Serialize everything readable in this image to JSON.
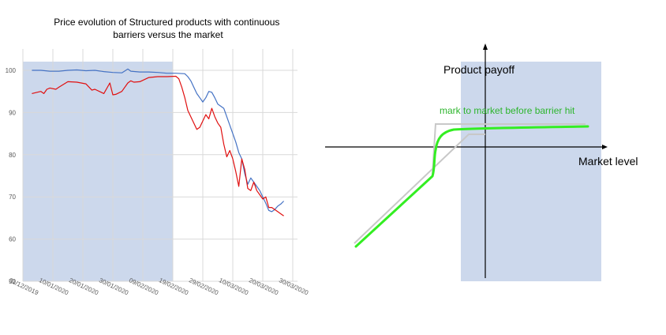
{
  "chart_data": [
    {
      "type": "line",
      "title": "Price evolution of Structured products with continuous barriers versus the market",
      "title_lines": [
        "Price evolution of Structured products with continuous",
        "barriers versus the market"
      ],
      "ylim": [
        50,
        105
      ],
      "y_ticks": [
        50,
        60,
        70,
        80,
        90,
        100
      ],
      "x_tick_labels": [
        "31/12/2019",
        "10/01/2020",
        "20/01/2020",
        "30/01/2020",
        "09/02/2020",
        "19/02/2020",
        "29/02/2020",
        "10/03/2020",
        "20/03/2020",
        "30/03/2020"
      ],
      "xlim_days_from_first_tick": [
        0,
        90
      ],
      "grid": true,
      "shaded_region": {
        "from": "31/12/2019",
        "to": "19/02/2020",
        "color": "#ccd8ec"
      },
      "series": [
        {
          "color": "#4472c4",
          "x_days": [
            3,
            6,
            9,
            12,
            15,
            18,
            21,
            24,
            27,
            30,
            33,
            35,
            36,
            39,
            42,
            45,
            48,
            51,
            54,
            55,
            56,
            57,
            58,
            59,
            60,
            61,
            62,
            63,
            64,
            65,
            67,
            69,
            70,
            71,
            72,
            73,
            74,
            75,
            76,
            77,
            78,
            79,
            80,
            81,
            82,
            83,
            84,
            85,
            86,
            87
          ],
          "values": [
            100,
            100,
            99.8,
            99.8,
            100,
            100.1,
            99.9,
            100,
            99.7,
            99.5,
            99.4,
            100.3,
            99.8,
            99.6,
            99.6,
            99.5,
            99.3,
            99.3,
            99.2,
            98.5,
            97.5,
            96,
            94.5,
            93.5,
            92.5,
            93.5,
            95,
            94.8,
            93.5,
            92,
            91,
            87,
            85,
            83,
            80.5,
            79,
            75.5,
            73,
            74.5,
            73.5,
            72.5,
            71.5,
            70,
            68.5,
            66.8,
            66.5,
            67,
            67.8,
            68.3,
            69
          ]
        },
        {
          "color": "#e01010",
          "x_days": [
            3,
            6,
            7,
            8,
            9,
            11,
            12,
            15,
            18,
            21,
            23,
            24,
            27,
            29,
            30,
            31,
            33,
            35,
            36,
            37,
            39,
            42,
            45,
            48,
            51,
            52,
            53,
            54,
            55,
            56,
            57,
            58,
            59,
            60,
            61,
            62,
            63,
            64,
            65,
            66,
            67,
            68,
            69,
            70,
            71,
            72,
            73,
            74,
            75,
            76,
            77,
            78,
            79,
            80,
            81,
            82,
            83,
            84,
            85,
            86,
            87
          ],
          "values": [
            94.5,
            95,
            94.5,
            95.5,
            95.8,
            95.5,
            96,
            97.3,
            97.2,
            96.8,
            95.3,
            95.5,
            94.5,
            97,
            94.2,
            94.3,
            95,
            97,
            97.5,
            97.2,
            97.3,
            98.3,
            98.5,
            98.5,
            98.6,
            98,
            96,
            93.5,
            90.5,
            89,
            87.5,
            86,
            86.5,
            88,
            89.5,
            88.5,
            91,
            89,
            87.5,
            86.5,
            82.5,
            79.5,
            81,
            79,
            76,
            72.5,
            79,
            76.5,
            72,
            71.5,
            73.5,
            71.5,
            70.5,
            69.5,
            70,
            67.5,
            67.5,
            67,
            66.5,
            66,
            65.5
          ]
        }
      ]
    },
    {
      "type": "line",
      "subtype": "payoff-diagram",
      "ylabel": "Product payoff",
      "xlabel": "Market level",
      "annotations": [
        {
          "text": "mark to market before barrier hit",
          "color": "#2db52d"
        }
      ],
      "shaded_region": {
        "color": "#ccd8ec"
      },
      "series": [
        {
          "color": "#c8c8c8",
          "description": "payoff at maturity"
        },
        {
          "color": "#33ee22",
          "description": "mark to market before barrier hit"
        }
      ]
    }
  ]
}
